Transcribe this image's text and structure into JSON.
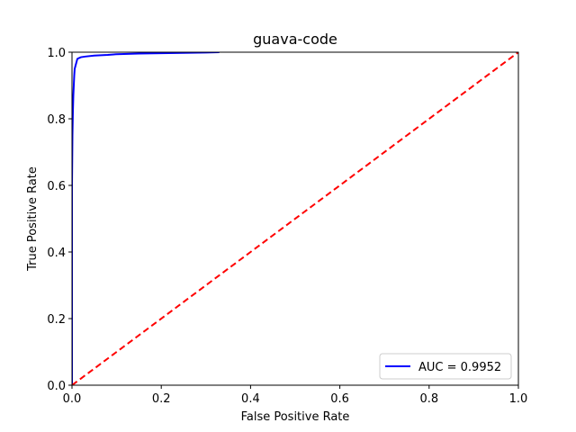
{
  "chart_data": {
    "type": "line",
    "title": "guava-code",
    "xlabel": "False Positive Rate",
    "ylabel": "True Positive Rate",
    "xlim": [
      0.0,
      1.0
    ],
    "ylim": [
      0.0,
      1.0
    ],
    "xticks": [
      "0.0",
      "0.2",
      "0.4",
      "0.6",
      "0.8",
      "1.0"
    ],
    "yticks": [
      "0.0",
      "0.2",
      "0.4",
      "0.6",
      "0.8",
      "1.0"
    ],
    "grid": false,
    "legend_position": "lower-right",
    "series": [
      {
        "name": "AUC = 0.9952",
        "color": "#0000ff",
        "style": "solid",
        "x": [
          0.0,
          0.0,
          0.001,
          0.002,
          0.003,
          0.004,
          0.005,
          0.006,
          0.008,
          0.01,
          0.012,
          0.015,
          0.02,
          0.03,
          0.05,
          0.08,
          0.1,
          0.15,
          0.2,
          0.25,
          0.3,
          0.33
        ],
        "y": [
          0.0,
          0.6,
          0.75,
          0.82,
          0.87,
          0.9,
          0.93,
          0.95,
          0.96,
          0.97,
          0.98,
          0.982,
          0.985,
          0.987,
          0.99,
          0.992,
          0.994,
          0.996,
          0.997,
          0.998,
          0.999,
          1.0
        ]
      },
      {
        "name": "",
        "color": "#ff0000",
        "style": "dashed",
        "x": [
          0.0,
          1.0
        ],
        "y": [
          0.0,
          1.0
        ]
      }
    ]
  }
}
